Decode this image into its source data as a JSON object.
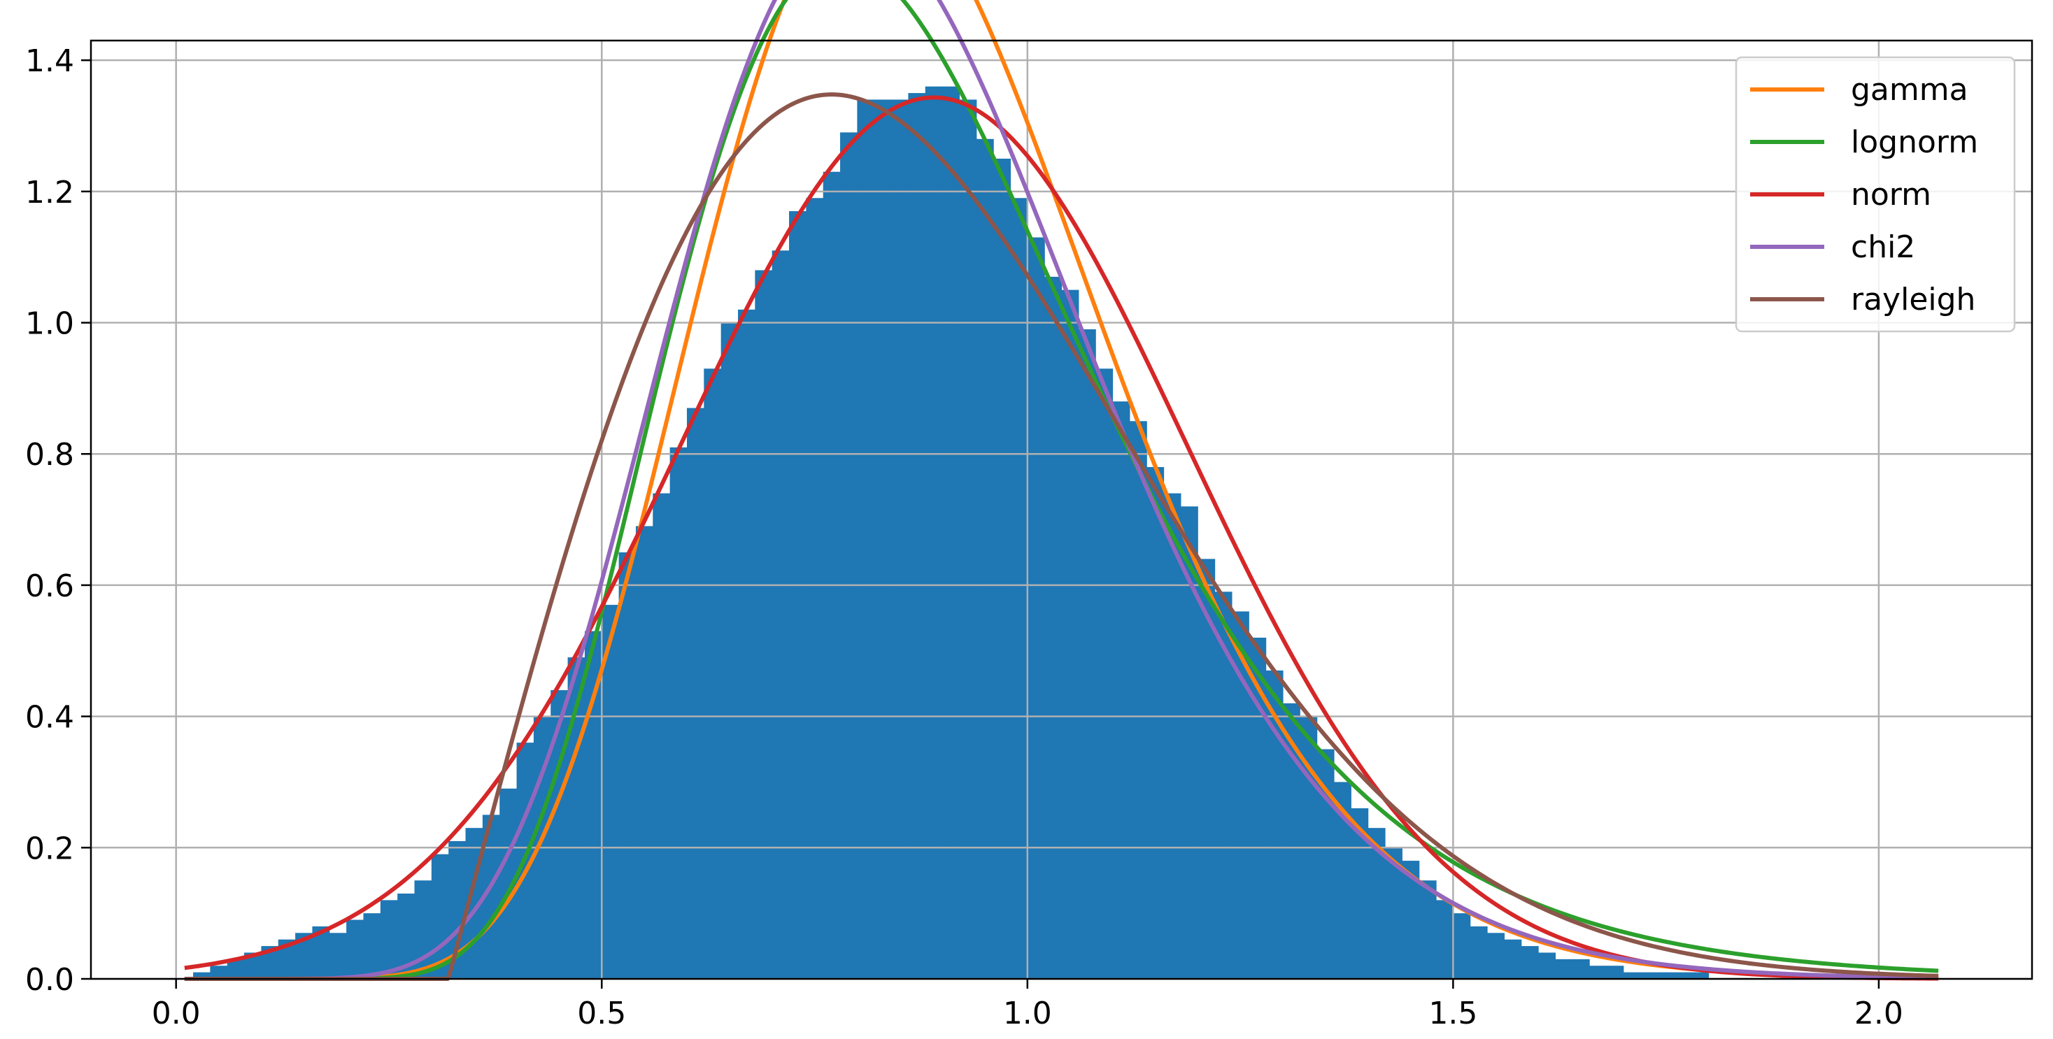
{
  "chart_data": {
    "type": "histogram",
    "title": "",
    "xlabel": "",
    "ylabel": "",
    "xlim": [
      -0.1,
      2.18
    ],
    "ylim": [
      0.0,
      1.43
    ],
    "grid": true,
    "legend_position": "top-right",
    "x_ticks": [
      "0.0",
      "0.5",
      "1.0",
      "1.5",
      "2.0"
    ],
    "x_tick_values": [
      0.0,
      0.5,
      1.0,
      1.5,
      2.0
    ],
    "y_ticks": [
      "0.0",
      "0.2",
      "0.4",
      "0.6",
      "0.8",
      "1.0",
      "1.2",
      "1.4"
    ],
    "y_tick_values": [
      0.0,
      0.2,
      0.4,
      0.6,
      0.8,
      1.0,
      1.2,
      1.4
    ],
    "histogram": {
      "color": "#1f77b4",
      "bin_start": 0.0,
      "bin_width": 0.02,
      "heights": [
        0.0,
        0.01,
        0.02,
        0.03,
        0.04,
        0.05,
        0.06,
        0.07,
        0.08,
        0.07,
        0.09,
        0.1,
        0.12,
        0.13,
        0.15,
        0.19,
        0.21,
        0.23,
        0.25,
        0.29,
        0.36,
        0.4,
        0.44,
        0.49,
        0.53,
        0.57,
        0.65,
        0.69,
        0.74,
        0.81,
        0.87,
        0.93,
        1.0,
        1.02,
        1.08,
        1.11,
        1.17,
        1.19,
        1.23,
        1.29,
        1.34,
        1.34,
        1.34,
        1.35,
        1.36,
        1.36,
        1.34,
        1.28,
        1.25,
        1.19,
        1.13,
        1.07,
        1.05,
        0.99,
        0.93,
        0.88,
        0.85,
        0.78,
        0.74,
        0.72,
        0.64,
        0.59,
        0.56,
        0.52,
        0.47,
        0.42,
        0.4,
        0.35,
        0.3,
        0.26,
        0.23,
        0.2,
        0.18,
        0.15,
        0.12,
        0.1,
        0.08,
        0.07,
        0.06,
        0.05,
        0.04,
        0.03,
        0.03,
        0.02,
        0.02,
        0.01,
        0.01,
        0.01,
        0.01,
        0.01,
        0.0,
        0.0,
        0.0,
        0.0,
        0.0,
        0.0,
        0.0,
        0.0,
        0.0,
        0.0,
        0.0,
        0.0,
        0.0
      ]
    },
    "series": [
      {
        "name": "gamma",
        "color": "#ff7f0e",
        "dist": "gamma",
        "params": {
          "k": 13.0,
          "theta": 0.0685
        }
      },
      {
        "name": "lognorm",
        "color": "#2ca02c",
        "dist": "lognorm",
        "params": {
          "mu": -0.148,
          "sigma": 0.313
        }
      },
      {
        "name": "norm",
        "color": "#d62728",
        "dist": "norm",
        "params": {
          "mu": 0.89,
          "sigma": 0.297
        }
      },
      {
        "name": "chi2",
        "color": "#9467bd",
        "dist": "gamma",
        "params": {
          "k": 11.5,
          "theta": 0.0758
        }
      },
      {
        "name": "rayleigh",
        "color": "#8c564b",
        "dist": "rayleigh",
        "params": {
          "loc": 0.32,
          "sigma": 0.45
        }
      }
    ],
    "curve_x_range": [
      0.01,
      2.07
    ]
  }
}
